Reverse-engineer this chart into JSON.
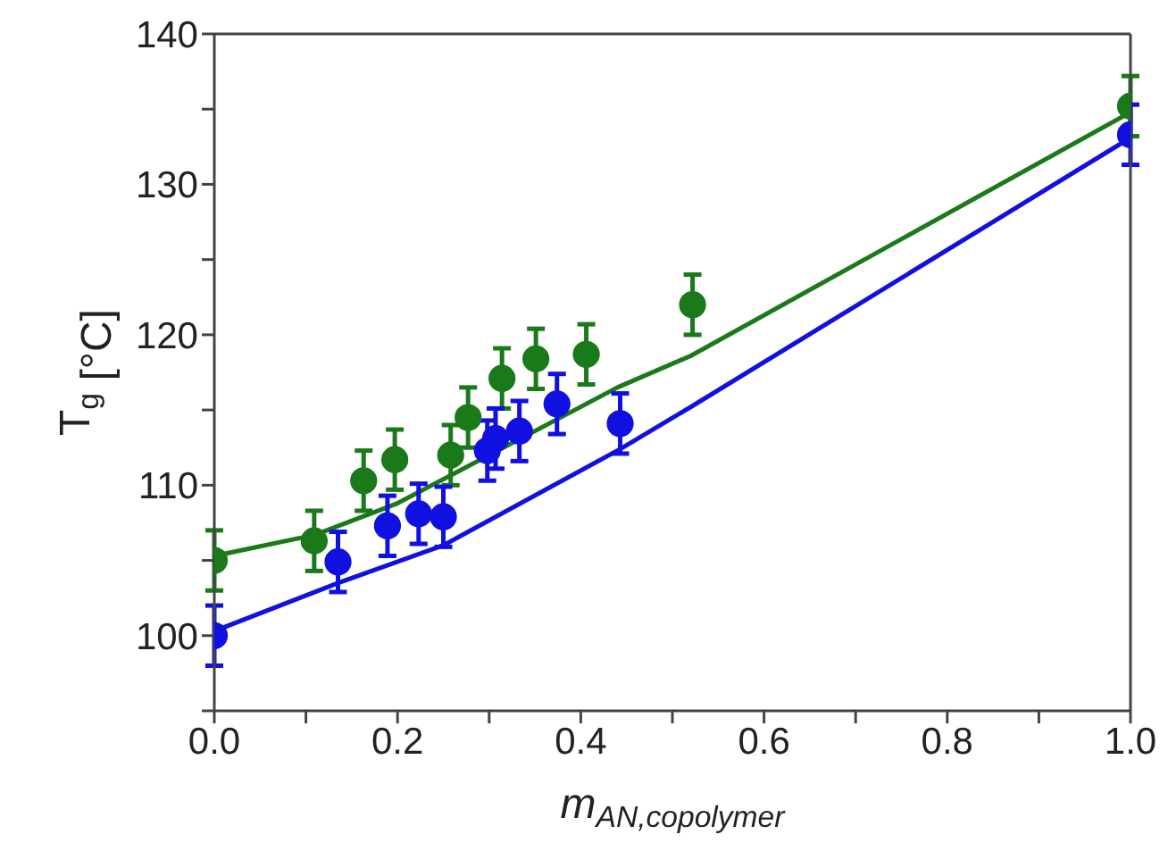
{
  "chart_data": {
    "type": "scatter",
    "xlabel": "m$_{AN,copolymer}$",
    "ylabel": "T$_{g}$ [°C]",
    "xlim": [
      0,
      1
    ],
    "ylim": [
      95,
      140
    ],
    "xticks": [
      {
        "value": 0,
        "label": "0.0"
      },
      {
        "value": 0.1,
        "label": null
      },
      {
        "value": 0.2,
        "label": "0.2"
      },
      {
        "value": 0.3,
        "label": null
      },
      {
        "value": 0.4,
        "label": "0.4"
      },
      {
        "value": 0.5,
        "label": null
      },
      {
        "value": 0.6,
        "label": "0.6"
      },
      {
        "value": 0.7,
        "label": null
      },
      {
        "value": 0.8,
        "label": "0.8"
      },
      {
        "value": 0.9,
        "label": null
      },
      {
        "value": 1,
        "label": "1.0"
      }
    ],
    "yticks": [
      {
        "value": 95,
        "label": null
      },
      100,
      {
        "value": 105,
        "label": null
      },
      110,
      {
        "value": 115,
        "label": null
      },
      120,
      {
        "value": 125,
        "label": null
      },
      130,
      {
        "value": 135,
        "label": null
      },
      140
    ],
    "grid": false,
    "series": [
      {
        "marker": "circle",
        "color": "#1a7a1a",
        "x": [
          0,
          0.109,
          0.163,
          0.197,
          0.258,
          0.277,
          0.314,
          0.351,
          0.406,
          0.522,
          1.0
        ],
        "values": [
          105.0,
          106.3,
          110.3,
          111.7,
          112.0,
          114.5,
          117.1,
          118.4,
          118.7,
          122.0,
          135.2
        ],
        "errors": [
          2,
          2,
          2,
          2,
          2,
          2,
          2,
          2,
          2,
          2,
          2
        ]
      },
      {
        "marker": "circle",
        "color": "#1010e0",
        "x": [
          0,
          0.135,
          0.189,
          0.223,
          0.25,
          0.298,
          0.307,
          0.333,
          0.374,
          0.443,
          1.0
        ],
        "values": [
          100.0,
          104.9,
          107.3,
          108.1,
          107.9,
          112.3,
          113.1,
          113.6,
          115.4,
          114.1,
          133.3
        ],
        "errors": [
          2,
          2,
          2,
          2,
          2,
          2,
          2,
          2,
          2,
          2,
          2
        ]
      },
      {
        "type": "line",
        "color": "#1a7a1a",
        "x": [
          0,
          0.11,
          0.2,
          0.3,
          0.44,
          0.52,
          1.0
        ],
        "values": [
          105.3,
          106.7,
          108.8,
          112.0,
          116.5,
          118.6,
          134.8
        ]
      },
      {
        "type": "line",
        "color": "#1010e0",
        "x": [
          0,
          0.135,
          0.25,
          0.443,
          0.52,
          1.0
        ],
        "values": [
          100.3,
          103.5,
          106.0,
          112.4,
          115.2,
          133.1
        ]
      }
    ]
  }
}
